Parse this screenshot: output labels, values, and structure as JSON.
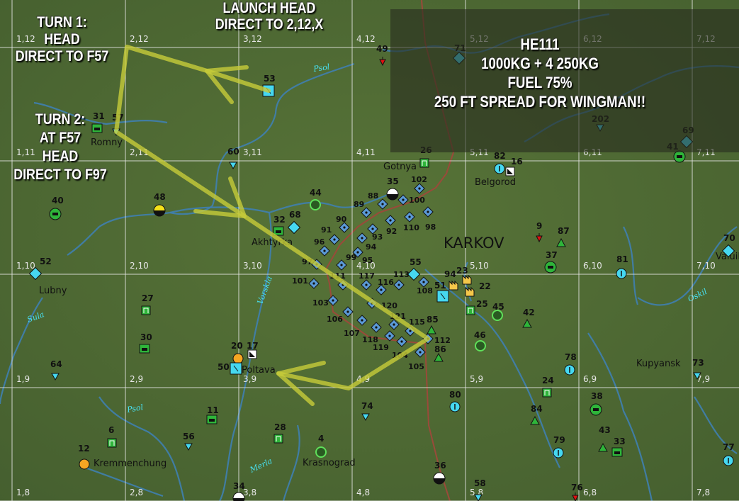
{
  "colors": {
    "terrain": "#4e6a34",
    "river": "#3f7fb0",
    "road": "#9a4a3a",
    "route": "#c7cc3a",
    "grid": "#e8e8e8",
    "cyan": "#46d8f0",
    "green": "#2fb53a",
    "factory": "#f5c84a"
  },
  "annotations": {
    "turn1": [
      "TURN 1:",
      "HEAD",
      "DIRECT TO F57"
    ],
    "turn2": [
      "TURN 2:",
      "AT F57",
      "HEAD",
      "DIRECT TO F97"
    ],
    "launch": [
      "LAUNCH HEAD",
      "DIRECT TO 2,12,X"
    ],
    "info": [
      "HE111",
      "1000KG + 4 250KG",
      "FUEL 75%",
      "250 FT SPREAD FOR WINGMAN!!"
    ]
  },
  "grid_labels": {
    "cols": [
      1,
      2,
      3,
      4,
      5,
      6,
      7
    ],
    "rows": [
      12,
      11,
      10,
      9,
      8
    ]
  },
  "places": [
    {
      "id": "romny",
      "name": "Romny"
    },
    {
      "id": "gotnya",
      "name": "Gotnya"
    },
    {
      "id": "belgorod",
      "name": "Belgorod"
    },
    {
      "id": "akhtyrka",
      "name": "Akhtyrka"
    },
    {
      "id": "karkov",
      "name": "KARKOV"
    },
    {
      "id": "lubny",
      "name": "Lubny"
    },
    {
      "id": "valuil",
      "name": "Valuil"
    },
    {
      "id": "kupyansk",
      "name": "Kupyansk"
    },
    {
      "id": "poltava",
      "name": "Poltava"
    },
    {
      "id": "kremmenchung",
      "name": "Kremmenchung"
    },
    {
      "id": "krasnograd",
      "name": "Krasnograd"
    }
  ],
  "rivers": [
    {
      "id": "psol1",
      "name": "Psol"
    },
    {
      "id": "psol2",
      "name": "Psol"
    },
    {
      "id": "sula",
      "name": "Sula"
    },
    {
      "id": "vorskla",
      "name": "Vorskla"
    },
    {
      "id": "oskil",
      "name": "Oskil"
    },
    {
      "id": "merla",
      "name": "Merla"
    }
  ],
  "markers": [
    {
      "id": "49",
      "type": "red-marker"
    },
    {
      "id": "71",
      "type": "cyan-diamond"
    },
    {
      "id": "53",
      "type": "cyan-square"
    },
    {
      "id": "31",
      "type": "green-tank-square"
    },
    {
      "id": "57",
      "type": "cyan-triangle"
    },
    {
      "id": "60",
      "type": "cyan-triangle"
    },
    {
      "id": "26",
      "type": "green-depot"
    },
    {
      "id": "82",
      "type": "cyan-circle"
    },
    {
      "id": "16",
      "type": "white-square"
    },
    {
      "id": "202",
      "type": "cyan-triangle"
    },
    {
      "id": "69",
      "type": "cyan-diamond"
    },
    {
      "id": "41",
      "type": "green-tank-circle"
    },
    {
      "id": "44",
      "type": "green-ring"
    },
    {
      "id": "35",
      "type": "half-circle"
    },
    {
      "id": "48",
      "type": "yellow-half"
    },
    {
      "id": "40",
      "type": "green-tank-circle"
    },
    {
      "id": "32",
      "type": "green-tank-square"
    },
    {
      "id": "68",
      "type": "cyan-diamond"
    },
    {
      "id": "9",
      "type": "red-marker"
    },
    {
      "id": "87",
      "type": "green-triangle"
    },
    {
      "id": "37",
      "type": "green-tank-circle"
    },
    {
      "id": "81",
      "type": "cyan-circle"
    },
    {
      "id": "70",
      "type": "cyan-diamond"
    },
    {
      "id": "52",
      "type": "cyan-diamond"
    },
    {
      "id": "55",
      "type": "cyan-diamond"
    },
    {
      "id": "94",
      "type": "factory"
    },
    {
      "id": "23",
      "type": "factory"
    },
    {
      "id": "22",
      "type": "factory"
    },
    {
      "id": "51",
      "type": "cyan-square"
    },
    {
      "id": "25",
      "type": "green-depot"
    },
    {
      "id": "45",
      "type": "green-ring"
    },
    {
      "id": "42",
      "type": "green-triangle"
    },
    {
      "id": "46",
      "type": "green-ring"
    },
    {
      "id": "85",
      "type": "green-triangle"
    },
    {
      "id": "86",
      "type": "green-triangle"
    },
    {
      "id": "27",
      "type": "green-depot"
    },
    {
      "id": "30",
      "type": "green-tank-square"
    },
    {
      "id": "64",
      "type": "cyan-triangle"
    },
    {
      "id": "20",
      "type": "orange-circle"
    },
    {
      "id": "17",
      "type": "white-square"
    },
    {
      "id": "50",
      "type": "cyan-square"
    },
    {
      "id": "78",
      "type": "cyan-circle"
    },
    {
      "id": "73",
      "type": "cyan-triangle"
    },
    {
      "id": "80",
      "type": "cyan-circle"
    },
    {
      "id": "24",
      "type": "green-depot"
    },
    {
      "id": "38",
      "type": "green-tank-circle"
    },
    {
      "id": "84",
      "type": "green-triangle"
    },
    {
      "id": "74",
      "type": "cyan-triangle"
    },
    {
      "id": "11",
      "type": "green-tank-square"
    },
    {
      "id": "6",
      "type": "green-depot"
    },
    {
      "id": "12",
      "type": "orange-circle"
    },
    {
      "id": "56",
      "type": "cyan-triangle"
    },
    {
      "id": "28",
      "type": "green-depot"
    },
    {
      "id": "4",
      "type": "green-ring"
    },
    {
      "id": "79",
      "type": "cyan-circle"
    },
    {
      "id": "43",
      "type": "green-triangle"
    },
    {
      "id": "33",
      "type": "green-tank-square"
    },
    {
      "id": "77",
      "type": "cyan-circle"
    },
    {
      "id": "36",
      "type": "half-circle"
    },
    {
      "id": "34",
      "type": "half-circle"
    },
    {
      "id": "58",
      "type": "cyan-triangle"
    },
    {
      "id": "76",
      "type": "red-marker"
    },
    {
      "id": "102",
      "type": "blue-diamond"
    },
    {
      "id": "88",
      "type": "blue-diamond"
    },
    {
      "id": "100",
      "type": "blue-diamond"
    },
    {
      "id": "89",
      "type": "blue-diamond"
    },
    {
      "id": "92",
      "type": "blue-diamond"
    },
    {
      "id": "110",
      "type": "blue-diamond"
    },
    {
      "id": "98",
      "type": "blue-diamond"
    },
    {
      "id": "90",
      "type": "blue-diamond"
    },
    {
      "id": "93",
      "type": "blue-diamond"
    },
    {
      "id": "91",
      "type": "blue-diamond"
    },
    {
      "id": "94b",
      "label": "94",
      "type": "blue-diamond"
    },
    {
      "id": "96",
      "type": "blue-diamond"
    },
    {
      "id": "95",
      "type": "blue-diamond"
    },
    {
      "id": "97",
      "type": "blue-diamond"
    },
    {
      "id": "99",
      "type": "blue-diamond"
    },
    {
      "id": "101",
      "type": "blue-diamond"
    },
    {
      "id": "111",
      "type": "blue-diamond"
    },
    {
      "id": "117",
      "type": "blue-diamond"
    },
    {
      "id": "116",
      "type": "blue-diamond"
    },
    {
      "id": "113",
      "type": "blue-diamond"
    },
    {
      "id": "108",
      "type": "blue-diamond"
    },
    {
      "id": "103",
      "type": "blue-diamond"
    },
    {
      "id": "120",
      "type": "blue-diamond"
    },
    {
      "id": "106",
      "type": "blue-diamond"
    },
    {
      "id": "107",
      "type": "blue-diamond"
    },
    {
      "id": "121",
      "type": "blue-diamond"
    },
    {
      "id": "118",
      "type": "blue-diamond"
    },
    {
      "id": "115",
      "type": "blue-diamond"
    },
    {
      "id": "119",
      "type": "blue-diamond"
    },
    {
      "id": "104",
      "type": "blue-diamond"
    },
    {
      "id": "112",
      "type": "blue-diamond"
    },
    {
      "id": "105",
      "type": "blue-diamond"
    }
  ]
}
